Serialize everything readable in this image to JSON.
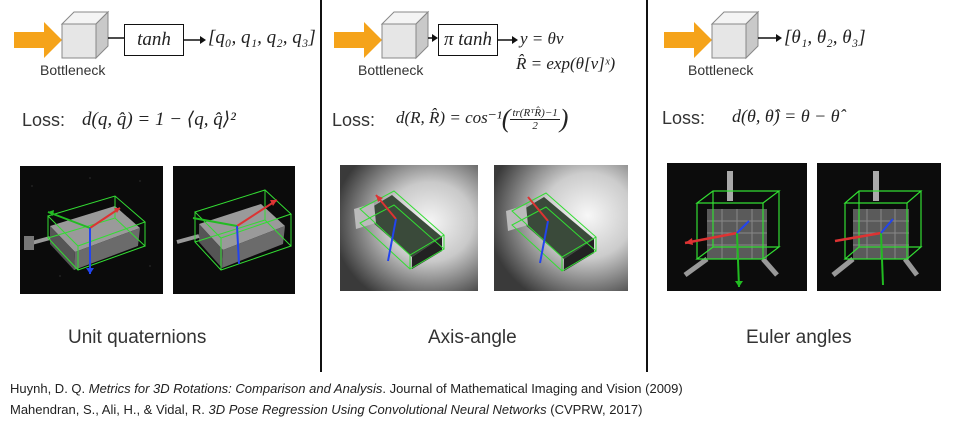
{
  "panels": [
    {
      "bottleneck_label": "Bottleneck",
      "block_label": "tanh",
      "output_expr": "[q₀, q₁, q₂, q₃]",
      "loss_label": "Loss:",
      "loss_expr": "d(q, q̂) = 1 − ⟨q, q̂⟩²",
      "caption": "Unit quaternions"
    },
    {
      "bottleneck_label": "Bottleneck",
      "block_label": "π tanh",
      "output_expr_1": "y = θv",
      "output_expr_2": "R̂ = exp(θ[v]ˣ)",
      "loss_label": "Loss:",
      "loss_expr_lhs": "d(R, R̂) = cos⁻¹",
      "loss_frac_num": "tr(RᵀR̂)−1",
      "loss_frac_den": "2",
      "caption": "Axis-angle"
    },
    {
      "bottleneck_label": "Bottleneck",
      "output_expr": "[θ₁, θ₂, θ₃]",
      "loss_label": "Loss:",
      "loss_expr": "d(θ, θ̂) = θ − θ̂",
      "caption": "Euler angles"
    }
  ],
  "references": [
    {
      "authors": "Huynh, D. Q. ",
      "title": "Metrics for 3D Rotations: Comparison and Analysis",
      "venue": ". Journal of Mathematical Imaging and Vision (2009)"
    },
    {
      "authors": "Mahendran, S., Ali, H., & Vidal, R. ",
      "title": "3D Pose Regression Using Convolutional Neural Networks",
      "venue": " (CVPRW, 2017)"
    }
  ],
  "colors": {
    "arrow_fill": "#F5A31A",
    "cube_front": "#E6E6E6",
    "cube_top": "#F4F4F4",
    "cube_side": "#C9C9C9",
    "wireframe": "#33DD33"
  }
}
